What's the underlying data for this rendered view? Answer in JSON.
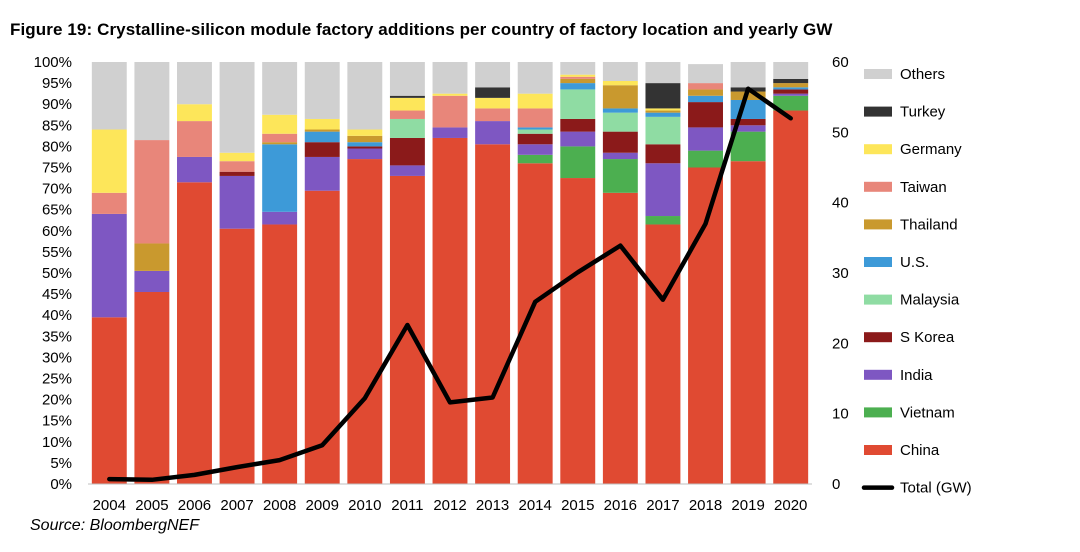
{
  "title": "Figure 19: Crystalline-silicon module factory additions per country of factory location and yearly GW",
  "source": "Source: BloombergNEF",
  "colors": {
    "China": "#e04a32",
    "Vietnam": "#4caf50",
    "India": "#7e57c2",
    "S Korea": "#8b1a1a",
    "Malaysia": "#8fdca3",
    "U.S.": "#3d9ad8",
    "Thailand": "#c9992e",
    "Taiwan": "#e8867a",
    "Germany": "#fde65a",
    "Turkey": "#333333",
    "Others": "#d0d0d0",
    "Total": "#000000"
  },
  "chart_data": {
    "type": "bar",
    "stacked": true,
    "categories": [
      "2004",
      "2005",
      "2006",
      "2007",
      "2008",
      "2009",
      "2010",
      "2011",
      "2012",
      "2013",
      "2014",
      "2015",
      "2016",
      "2017",
      "2018",
      "2019",
      "2020"
    ],
    "y_left": {
      "ylim": [
        0,
        100
      ],
      "ticks": [
        "0%",
        "5%",
        "10%",
        "15%",
        "20%",
        "25%",
        "30%",
        "35%",
        "40%",
        "45%",
        "50%",
        "55%",
        "60%",
        "65%",
        "70%",
        "75%",
        "80%",
        "85%",
        "90%",
        "95%",
        "100%"
      ]
    },
    "y_right": {
      "ylim": [
        0,
        60
      ],
      "ticks": [
        "0",
        "10",
        "20",
        "30",
        "40",
        "50",
        "60"
      ]
    },
    "series": [
      {
        "name": "China",
        "values": [
          39.5,
          45.5,
          71.5,
          60.5,
          61.5,
          69.5,
          77,
          73,
          82,
          80.5,
          76,
          72.5,
          69,
          61.5,
          75,
          76.5,
          88.5
        ]
      },
      {
        "name": "Vietnam",
        "values": [
          0,
          0,
          0,
          0,
          0,
          0,
          0,
          0,
          0,
          0,
          2,
          7.5,
          8,
          2,
          4,
          7,
          3.5
        ]
      },
      {
        "name": "India",
        "values": [
          24.5,
          5,
          6,
          12.5,
          3,
          8,
          2.5,
          2.5,
          2.5,
          5.5,
          2.5,
          3.5,
          1.5,
          12.5,
          5.5,
          1.5,
          0.5
        ]
      },
      {
        "name": "S Korea",
        "values": [
          0,
          0,
          0,
          1,
          0,
          3.5,
          0.5,
          6.5,
          0,
          0,
          2.5,
          3,
          5,
          4.5,
          6,
          1.5,
          1
        ]
      },
      {
        "name": "Malaysia",
        "values": [
          0,
          0,
          0,
          0,
          0,
          0,
          0,
          4.5,
          0,
          0,
          1,
          7,
          4.5,
          6.5,
          0,
          0,
          0
        ]
      },
      {
        "name": "U.S.",
        "values": [
          0,
          0,
          0,
          0,
          16,
          2.5,
          1,
          0,
          0,
          0,
          0.5,
          1.5,
          1,
          1,
          1.5,
          4.5,
          0.5
        ]
      },
      {
        "name": "Thailand",
        "values": [
          0,
          6.5,
          0,
          0,
          0.5,
          0.5,
          1.5,
          0,
          0,
          0,
          0,
          1,
          5.5,
          0.5,
          1.5,
          2,
          1
        ]
      },
      {
        "name": "Taiwan",
        "values": [
          5,
          24.5,
          8.5,
          2.5,
          2,
          0,
          0,
          2,
          7.5,
          3,
          4.5,
          0.5,
          0,
          0,
          1.5,
          0,
          0
        ]
      },
      {
        "name": "Germany",
        "values": [
          15,
          0,
          4,
          2,
          4.5,
          2.5,
          1.5,
          3,
          0.5,
          2.5,
          3.5,
          0.5,
          1,
          0.5,
          0,
          0,
          0
        ]
      },
      {
        "name": "Turkey",
        "values": [
          0,
          0,
          0,
          0,
          0,
          0,
          0,
          0.5,
          0,
          2.5,
          0,
          0,
          0,
          6,
          0,
          1,
          1
        ]
      },
      {
        "name": "Others",
        "values": [
          16,
          18.5,
          10,
          21.5,
          12.5,
          13.5,
          16,
          8,
          7.5,
          6,
          7.5,
          3,
          4.5,
          5,
          4.5,
          6,
          4
        ]
      }
    ],
    "line": {
      "name": "Total (GW)",
      "axis": "right",
      "values": [
        0.7,
        0.6,
        1.3,
        2.4,
        3.4,
        5.5,
        12.2,
        22.6,
        11.6,
        12.3,
        25.9,
        30.1,
        33.9,
        26.2,
        37,
        56.2,
        52
      ]
    },
    "legend": [
      "Others",
      "Turkey",
      "Germany",
      "Taiwan",
      "Thailand",
      "U.S.",
      "Malaysia",
      "S Korea",
      "India",
      "Vietnam",
      "China",
      "Total (GW)"
    ],
    "legend_position": "right"
  }
}
